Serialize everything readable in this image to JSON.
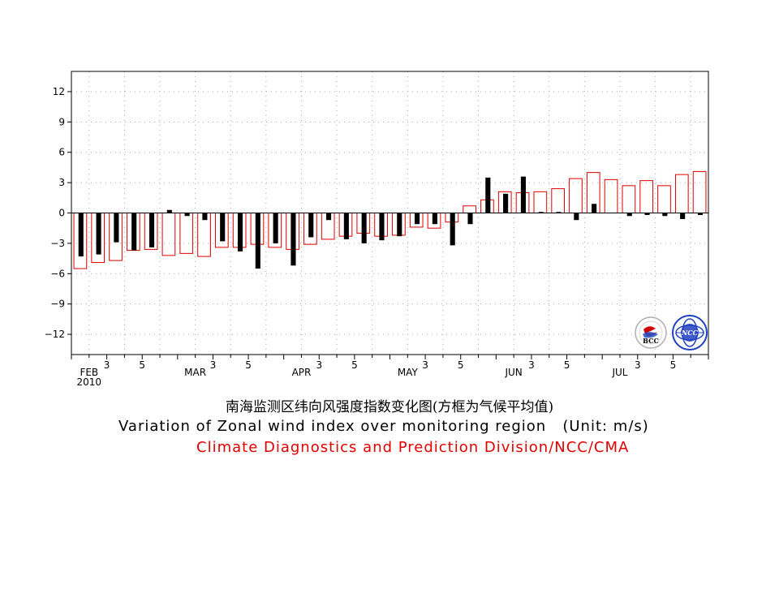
{
  "chart_data": {
    "type": "bar",
    "y_ticks": [
      12,
      9,
      6,
      3,
      0,
      -3,
      -6,
      -9,
      -12
    ],
    "y_tick_labels": [
      "12",
      "9",
      "6",
      "3",
      "0",
      "−3",
      "−6",
      "−9",
      "−12"
    ],
    "ylim": [
      -14,
      14
    ],
    "x_labels": [
      {
        "pos": 1,
        "text": "FEB"
      },
      {
        "pos": 2,
        "text": "3"
      },
      {
        "pos": 4,
        "text": "5"
      },
      {
        "pos": 7,
        "text": "MAR"
      },
      {
        "pos": 8,
        "text": "3"
      },
      {
        "pos": 10,
        "text": "5"
      },
      {
        "pos": 13,
        "text": "APR"
      },
      {
        "pos": 14,
        "text": "3"
      },
      {
        "pos": 16,
        "text": "5"
      },
      {
        "pos": 19,
        "text": "MAY"
      },
      {
        "pos": 20,
        "text": "3"
      },
      {
        "pos": 22,
        "text": "5"
      },
      {
        "pos": 25,
        "text": "JUN"
      },
      {
        "pos": 26,
        "text": "3"
      },
      {
        "pos": 28,
        "text": "5"
      },
      {
        "pos": 31,
        "text": "JUL"
      },
      {
        "pos": 32,
        "text": "3"
      },
      {
        "pos": 34,
        "text": "5"
      }
    ],
    "year_label": "2010",
    "grid": true,
    "series": [
      {
        "role": "observed",
        "style": "solid-black",
        "values": [
          -4.3,
          -4.1,
          -2.9,
          -3.7,
          -3.4,
          0.3,
          -0.3,
          -0.7,
          -2.8,
          -3.8,
          -5.5,
          -3.0,
          -5.2,
          -2.4,
          -0.7,
          -2.6,
          -3.0,
          -2.7,
          -2.3,
          -1.1,
          -1.1,
          -3.2,
          -1.1,
          3.5,
          1.9,
          3.6,
          0.1,
          0.1,
          -0.7,
          0.9,
          0.0,
          -0.3,
          -0.2,
          -0.3,
          -0.6,
          -0.2
        ]
      },
      {
        "role": "climatology",
        "style": "red-outline",
        "values": [
          -5.5,
          -4.9,
          -4.7,
          -3.7,
          -3.6,
          -4.2,
          -4.0,
          -4.3,
          -3.4,
          -3.4,
          -3.1,
          -3.4,
          -3.6,
          -3.1,
          -2.6,
          -2.3,
          -2.0,
          -2.3,
          -2.2,
          -1.4,
          -1.5,
          -0.9,
          0.7,
          1.3,
          2.1,
          2.0,
          2.1,
          2.4,
          3.4,
          4.0,
          3.3,
          2.7,
          3.2,
          2.7,
          3.8,
          4.1
        ]
      }
    ],
    "colors": {
      "observed": "#000000",
      "climatology": "#e00000",
      "axis": "#000000",
      "grid": "#aaaaaa"
    }
  },
  "titles": {
    "chinese": "南海监测区纬向风强度指数变化图(方框为气候平均值)",
    "english": "Variation of Zonal wind index over monitoring region   (Unit: m/s)",
    "credit": "Climate Diagnostics and Prediction Division/NCC/CMA"
  },
  "logos": {
    "bcc": "BCC",
    "ncc": "NCC"
  }
}
